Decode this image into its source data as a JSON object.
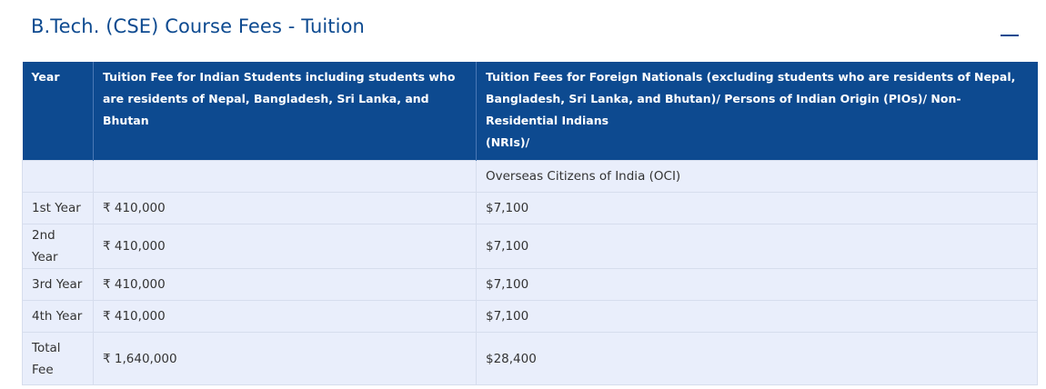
{
  "section": {
    "title": "B.Tech. (CSE) Course Fees - Tuition"
  },
  "table": {
    "headers": {
      "year": "Year",
      "indian": "Tuition Fee for Indian Students including students who are residents of Nepal, Bangladesh, Sri Lanka, and Bhutan",
      "foreign_line1": "Tuition Fees for Foreign Nationals (excluding students who are residents of Nepal, Bangladesh, Sri Lanka, and Bhutan)/ Persons of Indian Origin (PIOs)/ Non-Residential Indians",
      "foreign_line2": "(NRIs)/"
    },
    "subheader": {
      "year": "",
      "indian": "",
      "foreign": "Overseas Citizens of India (OCI)"
    },
    "rows": [
      {
        "year": "1st Year",
        "indian": "₹ 410,000",
        "foreign": "$7,100"
      },
      {
        "year": "2nd Year",
        "indian": "₹ 410,000",
        "foreign": "$7,100"
      },
      {
        "year": "3rd Year",
        "indian": "₹ 410,000",
        "foreign": "$7,100"
      },
      {
        "year": "4th Year",
        "indian": "₹ 410,000",
        "foreign": "$7,100"
      }
    ],
    "total": {
      "year": "Total Fee",
      "indian": "₹ 1,640,000",
      "foreign": "$28,400"
    }
  },
  "colors": {
    "header_bg": "#0d4a90",
    "title_text": "#0d4a90",
    "row_bg": "#e9eefb",
    "border": "#d6dded"
  },
  "icons": {
    "collapse": "minus-icon"
  }
}
